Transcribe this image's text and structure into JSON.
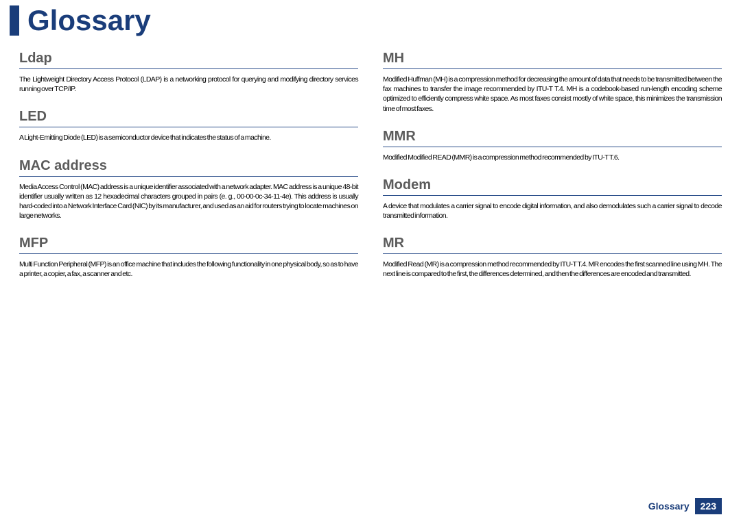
{
  "title": "Glossary",
  "footer": {
    "label": "Glossary",
    "page": "223"
  },
  "colors": {
    "accent": "#1a3d7a",
    "term": "#5b5b5b",
    "text": "#000000",
    "bg": "#ffffff"
  },
  "left": [
    {
      "term": "Ldap",
      "def": "The Lightweight Directory Access Protocol (LDAP) is a networking protocol for querying and modifying directory services running over TCP/IP."
    },
    {
      "term": "LED",
      "def": "A Light-Emitting Diode (LED) is a semiconductor device that indicates the status of a machine."
    },
    {
      "term": "MAC address",
      "def": "Media Access Control (MAC) address is a unique identifier associated with a network adapter. MAC address is a unique 48-bit identifier usually written as 12 hexadecimal characters grouped in pairs (e. g., 00-00-0c-34-11-4e). This address is usually hard-coded into a Network Interface Card (NIC) by its manufacturer, and used as an aid for routers trying to locate machines on large networks."
    },
    {
      "term": "MFP",
      "def": "Multi Function Peripheral (MFP) is an office machine that includes the following functionality in one physical body, so as to have a printer, a copier, a fax, a scanner and etc."
    }
  ],
  "right": [
    {
      "term": "MH",
      "def": "Modified Huffman (MH) is a compression method for decreasing the amount of data that needs to be transmitted between the fax machines to transfer the image recommended by ITU-T T.4. MH is a codebook-based run-length encoding scheme optimized to efficiently compress white space. As most faxes consist mostly of white space, this minimizes the transmission time of most faxes."
    },
    {
      "term": "MMR",
      "def": "Modified Modified READ (MMR) is a compression method recommended by ITU-T T.6."
    },
    {
      "term": "Modem",
      "def": "A device that modulates a carrier signal to encode digital information, and also demodulates such a carrier signal to decode transmitted information."
    },
    {
      "term": "MR",
      "def": "Modified Read (MR) is a compression method recommended by ITU-T T.4. MR encodes the first scanned line using MH. The next line is compared to the first, the differences determined, and then the differences are encoded and transmitted."
    }
  ]
}
